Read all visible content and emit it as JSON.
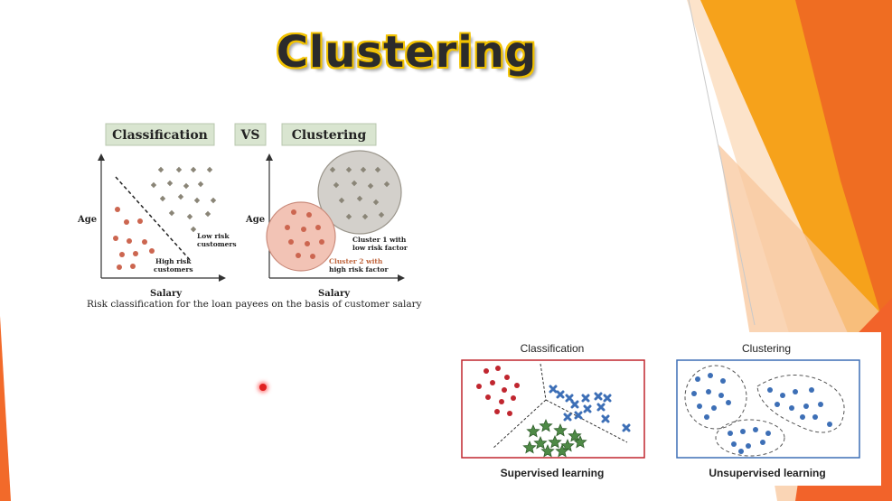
{
  "slide": {
    "title": "Clustering"
  },
  "left_figure": {
    "header_left": "Classification",
    "header_vs": "VS",
    "header_right": "Clustering",
    "y_axis_label_left": "Age",
    "x_axis_label_left": "Salary",
    "y_axis_label_right": "Age",
    "x_axis_label_right": "Salary",
    "low_risk_label": [
      "Low risk",
      "customers"
    ],
    "high_risk_label": [
      "High risk",
      "customers"
    ],
    "cluster1_label": [
      "Cluster 1 with",
      "low risk factor"
    ],
    "cluster2_label": [
      "Cluster 2 with",
      "high risk factor"
    ],
    "caption": "Risk classification for the loan payees on the basis of customer salary"
  },
  "right_figure": {
    "classification_title": "Classification",
    "clustering_title": "Clustering",
    "classification_subtitle": "Supervised learning",
    "clustering_subtitle": "Unsupervised learning"
  },
  "colors": {
    "accent_orange": "#f6a21b",
    "dark_orange": "#ee6a1f",
    "red_dot": "#cc6650",
    "gray_diamond": "#8a8577",
    "blue": "#3d6fb6",
    "crimson": "#c0262f",
    "green": "#4e8a46"
  }
}
